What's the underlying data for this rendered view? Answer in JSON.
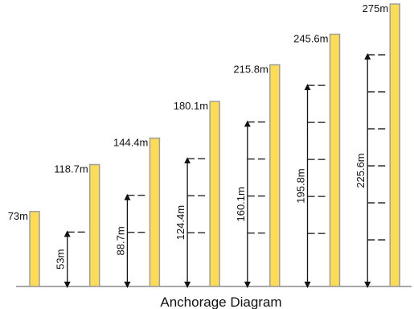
{
  "title": "Anchorage Diagram",
  "colors": {
    "column_fill": "#FCDC56",
    "column_stroke": "#9E9E9E",
    "line": "#111111",
    "ground": "#8C8C8C"
  },
  "columns": [
    {
      "height_label": "73m",
      "height_m": 73,
      "anchorage_label": null,
      "anchorage_m": null,
      "tick_count": 0
    },
    {
      "height_label": "118.7m",
      "height_m": 118.7,
      "anchorage_label": "53m",
      "anchorage_m": 53,
      "tick_count": 1
    },
    {
      "height_label": "144.4m",
      "height_m": 144.4,
      "anchorage_label": "88.7m",
      "anchorage_m": 88.7,
      "tick_count": 2
    },
    {
      "height_label": "180.1m",
      "height_m": 180.1,
      "anchorage_label": "124.4m",
      "anchorage_m": 124.4,
      "tick_count": 3
    },
    {
      "height_label": "215.8m",
      "height_m": 215.8,
      "anchorage_label": "160.1m",
      "anchorage_m": 160.1,
      "tick_count": 4
    },
    {
      "height_label": "245.6m",
      "height_m": 245.6,
      "anchorage_label": "195.8m",
      "anchorage_m": 195.8,
      "tick_count": 5
    },
    {
      "height_label": "275m",
      "height_m": 275,
      "anchorage_label": "225.6m",
      "anchorage_m": 225.6,
      "tick_count": 6
    }
  ]
}
